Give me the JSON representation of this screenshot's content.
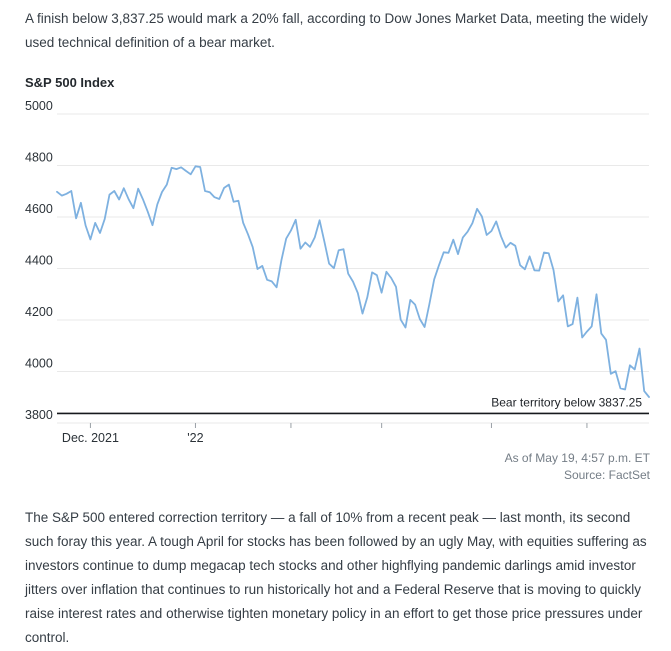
{
  "article": {
    "intro": "A finish below 3,837.25 would mark a 20% fall, according to Dow Jones Market Data, meeting the widely used technical definition of a bear market.",
    "body": "The S&P 500 entered correction territory — a fall of 10% from a recent peak — last month, its second such foray this year. A tough April for stocks has been followed by an ugly May, with equities suffering as investors continue to dump megacap tech stocks and other highflying pandemic darlings amid investor jitters over inflation that continues to run historically hot and a Federal Reserve that is moving to quickly raise interest rates and otherwise tighten monetary policy in an effort to get those price pressures under control."
  },
  "chart_data": {
    "type": "line",
    "title": "S&P 500 Index",
    "xlabel": "",
    "ylabel": "",
    "ylim": [
      3800,
      5000
    ],
    "y_ticks": [
      3800,
      4000,
      4200,
      4400,
      4600,
      4800,
      5000
    ],
    "x_ticks": [
      {
        "index": 7,
        "label": "Dec. 2021"
      },
      {
        "index": 29,
        "label": "'22"
      },
      {
        "index": 49,
        "label": ""
      },
      {
        "index": 68,
        "label": ""
      },
      {
        "index": 91,
        "label": ""
      },
      {
        "index": 111,
        "label": ""
      }
    ],
    "threshold": {
      "value": 3837.25,
      "label": "Bear territory below 3837.25"
    },
    "as_of": "As of May 19, 4:57 p.m. ET",
    "source": "Source: FactSet",
    "grid": true,
    "legend_position": "none",
    "dates": [
      "2021-11-19",
      "2021-11-22",
      "2021-11-23",
      "2021-11-24",
      "2021-11-26",
      "2021-11-29",
      "2021-11-30",
      "2021-12-01",
      "2021-12-02",
      "2021-12-03",
      "2021-12-06",
      "2021-12-07",
      "2021-12-08",
      "2021-12-09",
      "2021-12-10",
      "2021-12-13",
      "2021-12-14",
      "2021-12-15",
      "2021-12-16",
      "2021-12-17",
      "2021-12-20",
      "2021-12-21",
      "2021-12-22",
      "2021-12-23",
      "2021-12-27",
      "2021-12-28",
      "2021-12-29",
      "2021-12-30",
      "2021-12-31",
      "2022-01-03",
      "2022-01-04",
      "2022-01-05",
      "2022-01-06",
      "2022-01-07",
      "2022-01-10",
      "2022-01-11",
      "2022-01-12",
      "2022-01-13",
      "2022-01-14",
      "2022-01-18",
      "2022-01-19",
      "2022-01-20",
      "2022-01-21",
      "2022-01-24",
      "2022-01-25",
      "2022-01-26",
      "2022-01-27",
      "2022-01-28",
      "2022-01-31",
      "2022-02-01",
      "2022-02-02",
      "2022-02-03",
      "2022-02-04",
      "2022-02-07",
      "2022-02-08",
      "2022-02-09",
      "2022-02-10",
      "2022-02-11",
      "2022-02-14",
      "2022-02-15",
      "2022-02-16",
      "2022-02-17",
      "2022-02-18",
      "2022-02-22",
      "2022-02-23",
      "2022-02-24",
      "2022-02-25",
      "2022-02-28",
      "2022-03-01",
      "2022-03-02",
      "2022-03-03",
      "2022-03-04",
      "2022-03-07",
      "2022-03-08",
      "2022-03-09",
      "2022-03-10",
      "2022-03-11",
      "2022-03-14",
      "2022-03-15",
      "2022-03-16",
      "2022-03-17",
      "2022-03-18",
      "2022-03-21",
      "2022-03-22",
      "2022-03-23",
      "2022-03-24",
      "2022-03-25",
      "2022-03-28",
      "2022-03-29",
      "2022-03-30",
      "2022-03-31",
      "2022-04-01",
      "2022-04-04",
      "2022-04-05",
      "2022-04-06",
      "2022-04-07",
      "2022-04-08",
      "2022-04-11",
      "2022-04-12",
      "2022-04-13",
      "2022-04-14",
      "2022-04-18",
      "2022-04-19",
      "2022-04-20",
      "2022-04-21",
      "2022-04-22",
      "2022-04-25",
      "2022-04-26",
      "2022-04-27",
      "2022-04-28",
      "2022-04-29",
      "2022-05-02",
      "2022-05-03",
      "2022-05-04",
      "2022-05-05",
      "2022-05-06",
      "2022-05-09",
      "2022-05-10",
      "2022-05-11",
      "2022-05-12",
      "2022-05-13",
      "2022-05-16",
      "2022-05-17",
      "2022-05-18",
      "2022-05-19"
    ],
    "series": [
      {
        "name": "S&P 500",
        "values": [
          4698,
          4683,
          4690,
          4701,
          4595,
          4655,
          4567,
          4513,
          4577,
          4538,
          4592,
          4687,
          4701,
          4668,
          4712,
          4669,
          4634,
          4710,
          4669,
          4621,
          4568,
          4649,
          4697,
          4726,
          4791,
          4786,
          4793,
          4779,
          4766,
          4797,
          4794,
          4701,
          4696,
          4677,
          4670,
          4713,
          4726,
          4659,
          4663,
          4577,
          4533,
          4483,
          4398,
          4410,
          4356,
          4350,
          4327,
          4432,
          4516,
          4547,
          4589,
          4477,
          4501,
          4484,
          4521,
          4587,
          4504,
          4419,
          4401,
          4471,
          4475,
          4380,
          4349,
          4305,
          4225,
          4288,
          4385,
          4374,
          4306,
          4387,
          4363,
          4329,
          4201,
          4171,
          4278,
          4260,
          4204,
          4173,
          4262,
          4358,
          4412,
          4463,
          4461,
          4512,
          4456,
          4520,
          4543,
          4576,
          4632,
          4602,
          4530,
          4546,
          4583,
          4525,
          4481,
          4500,
          4488,
          4413,
          4397,
          4447,
          4393,
          4392,
          4462,
          4459,
          4394,
          4272,
          4296,
          4175,
          4184,
          4287,
          4132,
          4155,
          4175,
          4300,
          4147,
          4123,
          3991,
          4001,
          3935,
          3930,
          4024,
          4008,
          4089,
          3924,
          3901
        ]
      }
    ],
    "colors": {
      "line": "#7eb1e0",
      "grid": "#e9e9e9",
      "tick": "#9aa0a6",
      "threshold": "#16191d",
      "threshold_text": "#1d2126",
      "axis_text": "#2b3238",
      "muted_text": "#747d86"
    }
  }
}
